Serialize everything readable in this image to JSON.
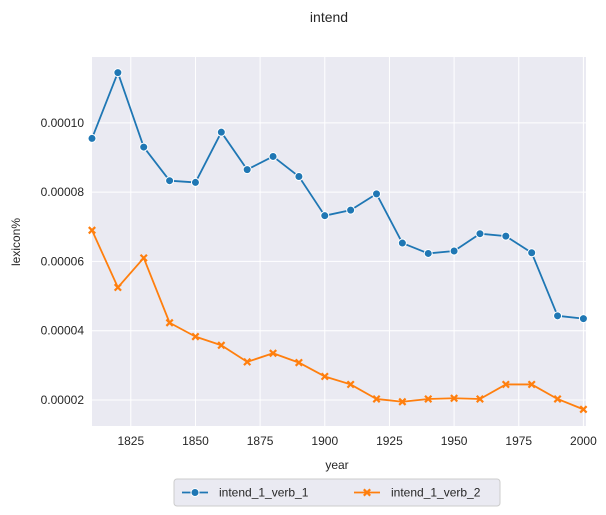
{
  "chart_data": {
    "type": "line",
    "title": "intend",
    "xlabel": "year",
    "ylabel": "lexicon%",
    "xlim": [
      1810,
      2001
    ],
    "ylim": [
      1.25e-05,
      0.000119
    ],
    "x": [
      1810,
      1820,
      1830,
      1840,
      1850,
      1860,
      1870,
      1880,
      1890,
      1900,
      1910,
      1920,
      1930,
      1940,
      1950,
      1960,
      1970,
      1980,
      1990,
      2000
    ],
    "x_ticks": [
      1825,
      1850,
      1875,
      1900,
      1925,
      1950,
      1975,
      2000
    ],
    "x_tick_labels": [
      "1825",
      "1850",
      "1875",
      "1900",
      "1925",
      "1950",
      "1975",
      "2000"
    ],
    "y_ticks": [
      2e-05,
      4e-05,
      6e-05,
      8e-05,
      0.0001
    ],
    "y_tick_labels": [
      "0.00002",
      "0.00004",
      "0.00006",
      "0.00008",
      "0.00010"
    ],
    "grid": true,
    "legend_position": "bottom-center",
    "series": [
      {
        "name": "intend_1_verb_1",
        "color": "#1f77b4",
        "marker": "circle",
        "values": [
          9.55e-05,
          0.0001145,
          9.3e-05,
          8.33e-05,
          8.28e-05,
          9.73e-05,
          8.65e-05,
          9.03e-05,
          8.45e-05,
          7.32e-05,
          7.48e-05,
          7.95e-05,
          6.53e-05,
          6.23e-05,
          6.3e-05,
          6.8e-05,
          6.73e-05,
          6.25e-05,
          4.43e-05,
          4.35e-05
        ]
      },
      {
        "name": "intend_1_verb_2",
        "color": "#ff7f0e",
        "marker": "x",
        "values": [
          6.9e-05,
          5.25e-05,
          6.1e-05,
          4.23e-05,
          3.83e-05,
          3.58e-05,
          3.1e-05,
          3.35e-05,
          3.08e-05,
          2.68e-05,
          2.45e-05,
          2.03e-05,
          1.95e-05,
          2.03e-05,
          2.05e-05,
          2.03e-05,
          2.45e-05,
          2.45e-05,
          2.03e-05,
          1.73e-05
        ]
      }
    ]
  }
}
